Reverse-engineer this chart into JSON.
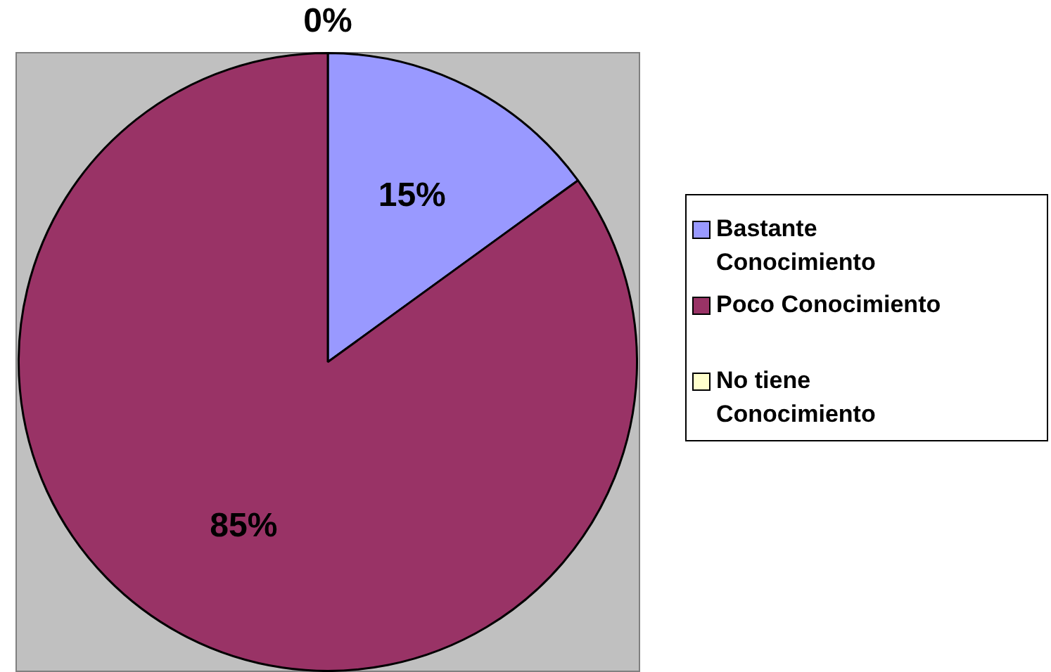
{
  "chart_data": {
    "type": "pie",
    "categories": [
      "Bastante Conocimiento",
      "Poco Conocimiento",
      "No tiene Conocimiento"
    ],
    "values": [
      15,
      85,
      0
    ],
    "colors": [
      "#9999ff",
      "#993366",
      "#ffffcc"
    ],
    "value_labels": [
      "15%",
      "85%",
      "0%"
    ],
    "legend": "right"
  }
}
